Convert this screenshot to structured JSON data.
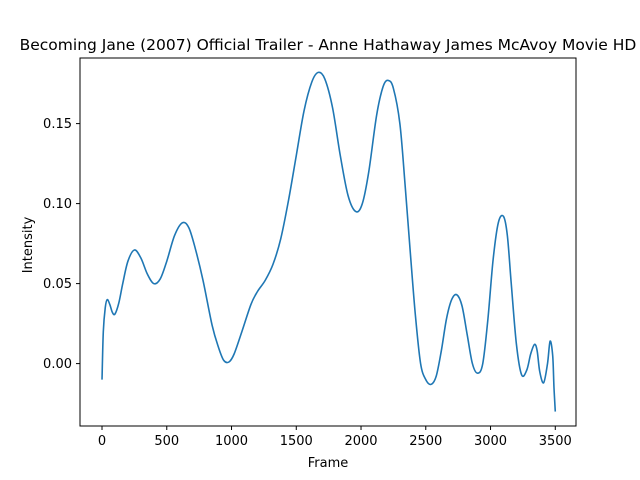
{
  "chart_data": {
    "type": "line",
    "title": "Becoming Jane (2007) Official Trailer - Anne Hathaway James McAvoy Movie HD",
    "xlabel": "Frame",
    "ylabel": "Intensity",
    "xlim": [
      -170,
      3660
    ],
    "ylim": [
      -0.039,
      0.191
    ],
    "xticks": [
      0,
      500,
      1000,
      1500,
      2000,
      2500,
      3000,
      3500
    ],
    "yticks": [
      0.0,
      0.05,
      0.1,
      0.15
    ],
    "ytick_labels": [
      "0.00",
      "0.05",
      "0.10",
      "0.15"
    ],
    "grid": false,
    "legend": "none",
    "line_color": "#1f77b4",
    "series": [
      {
        "x": [
          0,
          10,
          25,
          40,
          60,
          80,
          100,
          130,
          160,
          200,
          250,
          300,
          350,
          400,
          450,
          500,
          560,
          620,
          670,
          720,
          780,
          850,
          900,
          940,
          980,
          1020,
          1080,
          1150,
          1200,
          1260,
          1320,
          1380,
          1440,
          1500,
          1560,
          1620,
          1670,
          1720,
          1780,
          1840,
          1900,
          1960,
          2010,
          2060,
          2120,
          2170,
          2210,
          2250,
          2300,
          2340,
          2380,
          2420,
          2460,
          2500,
          2540,
          2580,
          2620,
          2660,
          2700,
          2740,
          2780,
          2820,
          2860,
          2900,
          2940,
          2980,
          3020,
          3060,
          3100,
          3130,
          3160,
          3200,
          3240,
          3280,
          3310,
          3340,
          3360,
          3380,
          3410,
          3440,
          3460,
          3480,
          3490,
          3500
        ],
        "y": [
          -0.01,
          0.02,
          0.035,
          0.04,
          0.037,
          0.032,
          0.031,
          0.038,
          0.05,
          0.064,
          0.071,
          0.066,
          0.056,
          0.05,
          0.053,
          0.064,
          0.08,
          0.088,
          0.085,
          0.072,
          0.052,
          0.024,
          0.01,
          0.002,
          0.001,
          0.006,
          0.02,
          0.037,
          0.045,
          0.052,
          0.062,
          0.078,
          0.102,
          0.13,
          0.158,
          0.176,
          0.182,
          0.178,
          0.16,
          0.13,
          0.105,
          0.095,
          0.1,
          0.12,
          0.155,
          0.173,
          0.177,
          0.172,
          0.15,
          0.112,
          0.07,
          0.03,
          0.0,
          -0.01,
          -0.013,
          -0.008,
          0.008,
          0.028,
          0.04,
          0.043,
          0.036,
          0.018,
          0.0,
          -0.006,
          0.0,
          0.028,
          0.065,
          0.088,
          0.092,
          0.08,
          0.05,
          0.012,
          -0.007,
          -0.004,
          0.006,
          0.012,
          0.008,
          -0.005,
          -0.012,
          0.0,
          0.014,
          0.005,
          -0.015,
          -0.03
        ]
      }
    ]
  }
}
